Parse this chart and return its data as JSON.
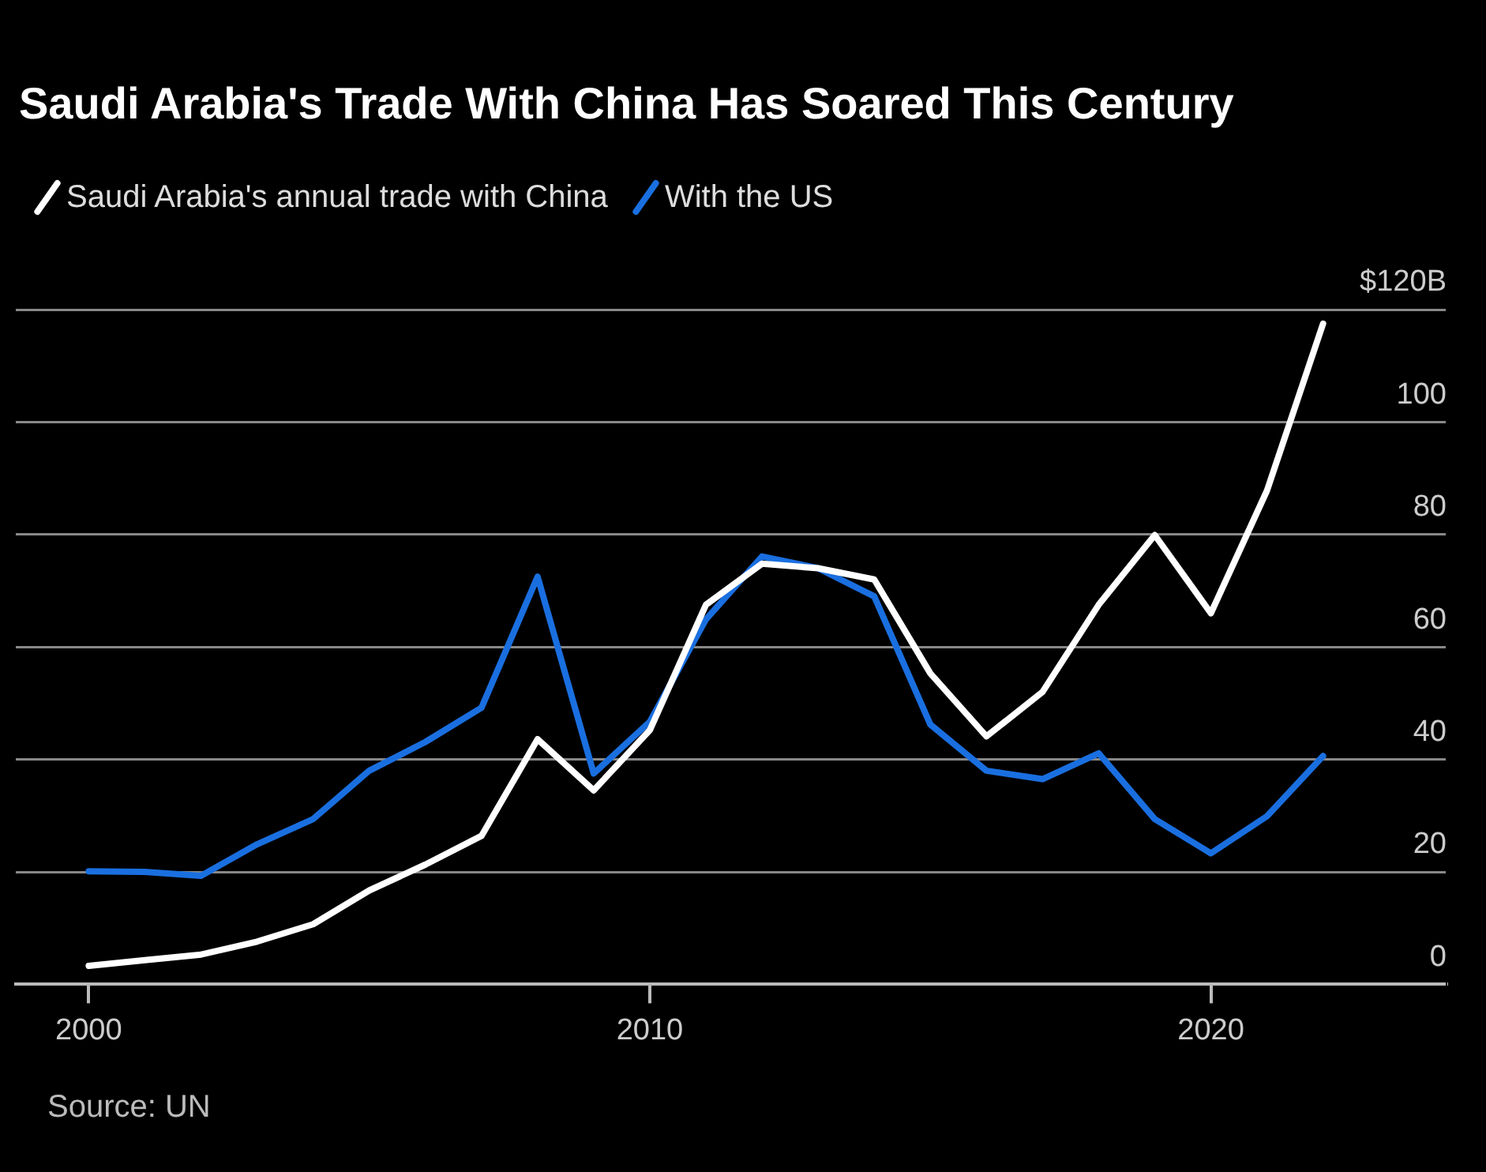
{
  "chart_data": {
    "type": "line",
    "title": "Saudi Arabia's Trade With China Has Soared This Century",
    "annotations": [
      "Source: UN"
    ],
    "x": [
      2000,
      2001,
      2002,
      2003,
      2004,
      2005,
      2006,
      2007,
      2008,
      2009,
      2010,
      2011,
      2012,
      2013,
      2014,
      2015,
      2016,
      2017,
      2018,
      2019,
      2020,
      2021,
      2022
    ],
    "series": [
      {
        "name": "Saudi Arabia's annual trade with China",
        "color": "#ffffff",
        "values": [
          3.3,
          4.3,
          5.3,
          7.6,
          10.7,
          16.7,
          21.3,
          26.4,
          43.6,
          34.5,
          45.2,
          67.5,
          74.8,
          74,
          72,
          55.3,
          44.1,
          52,
          67.5,
          79.9,
          66,
          87.8,
          117.5
        ]
      },
      {
        "name": "With the US",
        "color": "#1a6fe0",
        "values": [
          20.1,
          20,
          19.3,
          24.9,
          29.4,
          38,
          43.1,
          49.2,
          72.5,
          37.5,
          46.7,
          64.9,
          76.1,
          74,
          69,
          46.2,
          38,
          36.5,
          41.1,
          29.4,
          23.3,
          29.9,
          40.6
        ]
      }
    ],
    "xlim": [
      1998.7,
      2024.2
    ],
    "xticks": [
      2000,
      2010,
      2020
    ],
    "ylim": [
      0,
      120
    ],
    "yticks": [
      0,
      20,
      40,
      60,
      80,
      100,
      {
        "value": 120,
        "label": "$120B"
      }
    ],
    "grid": "y",
    "legend": "top left",
    "marker": "none",
    "line_style": "solid"
  }
}
